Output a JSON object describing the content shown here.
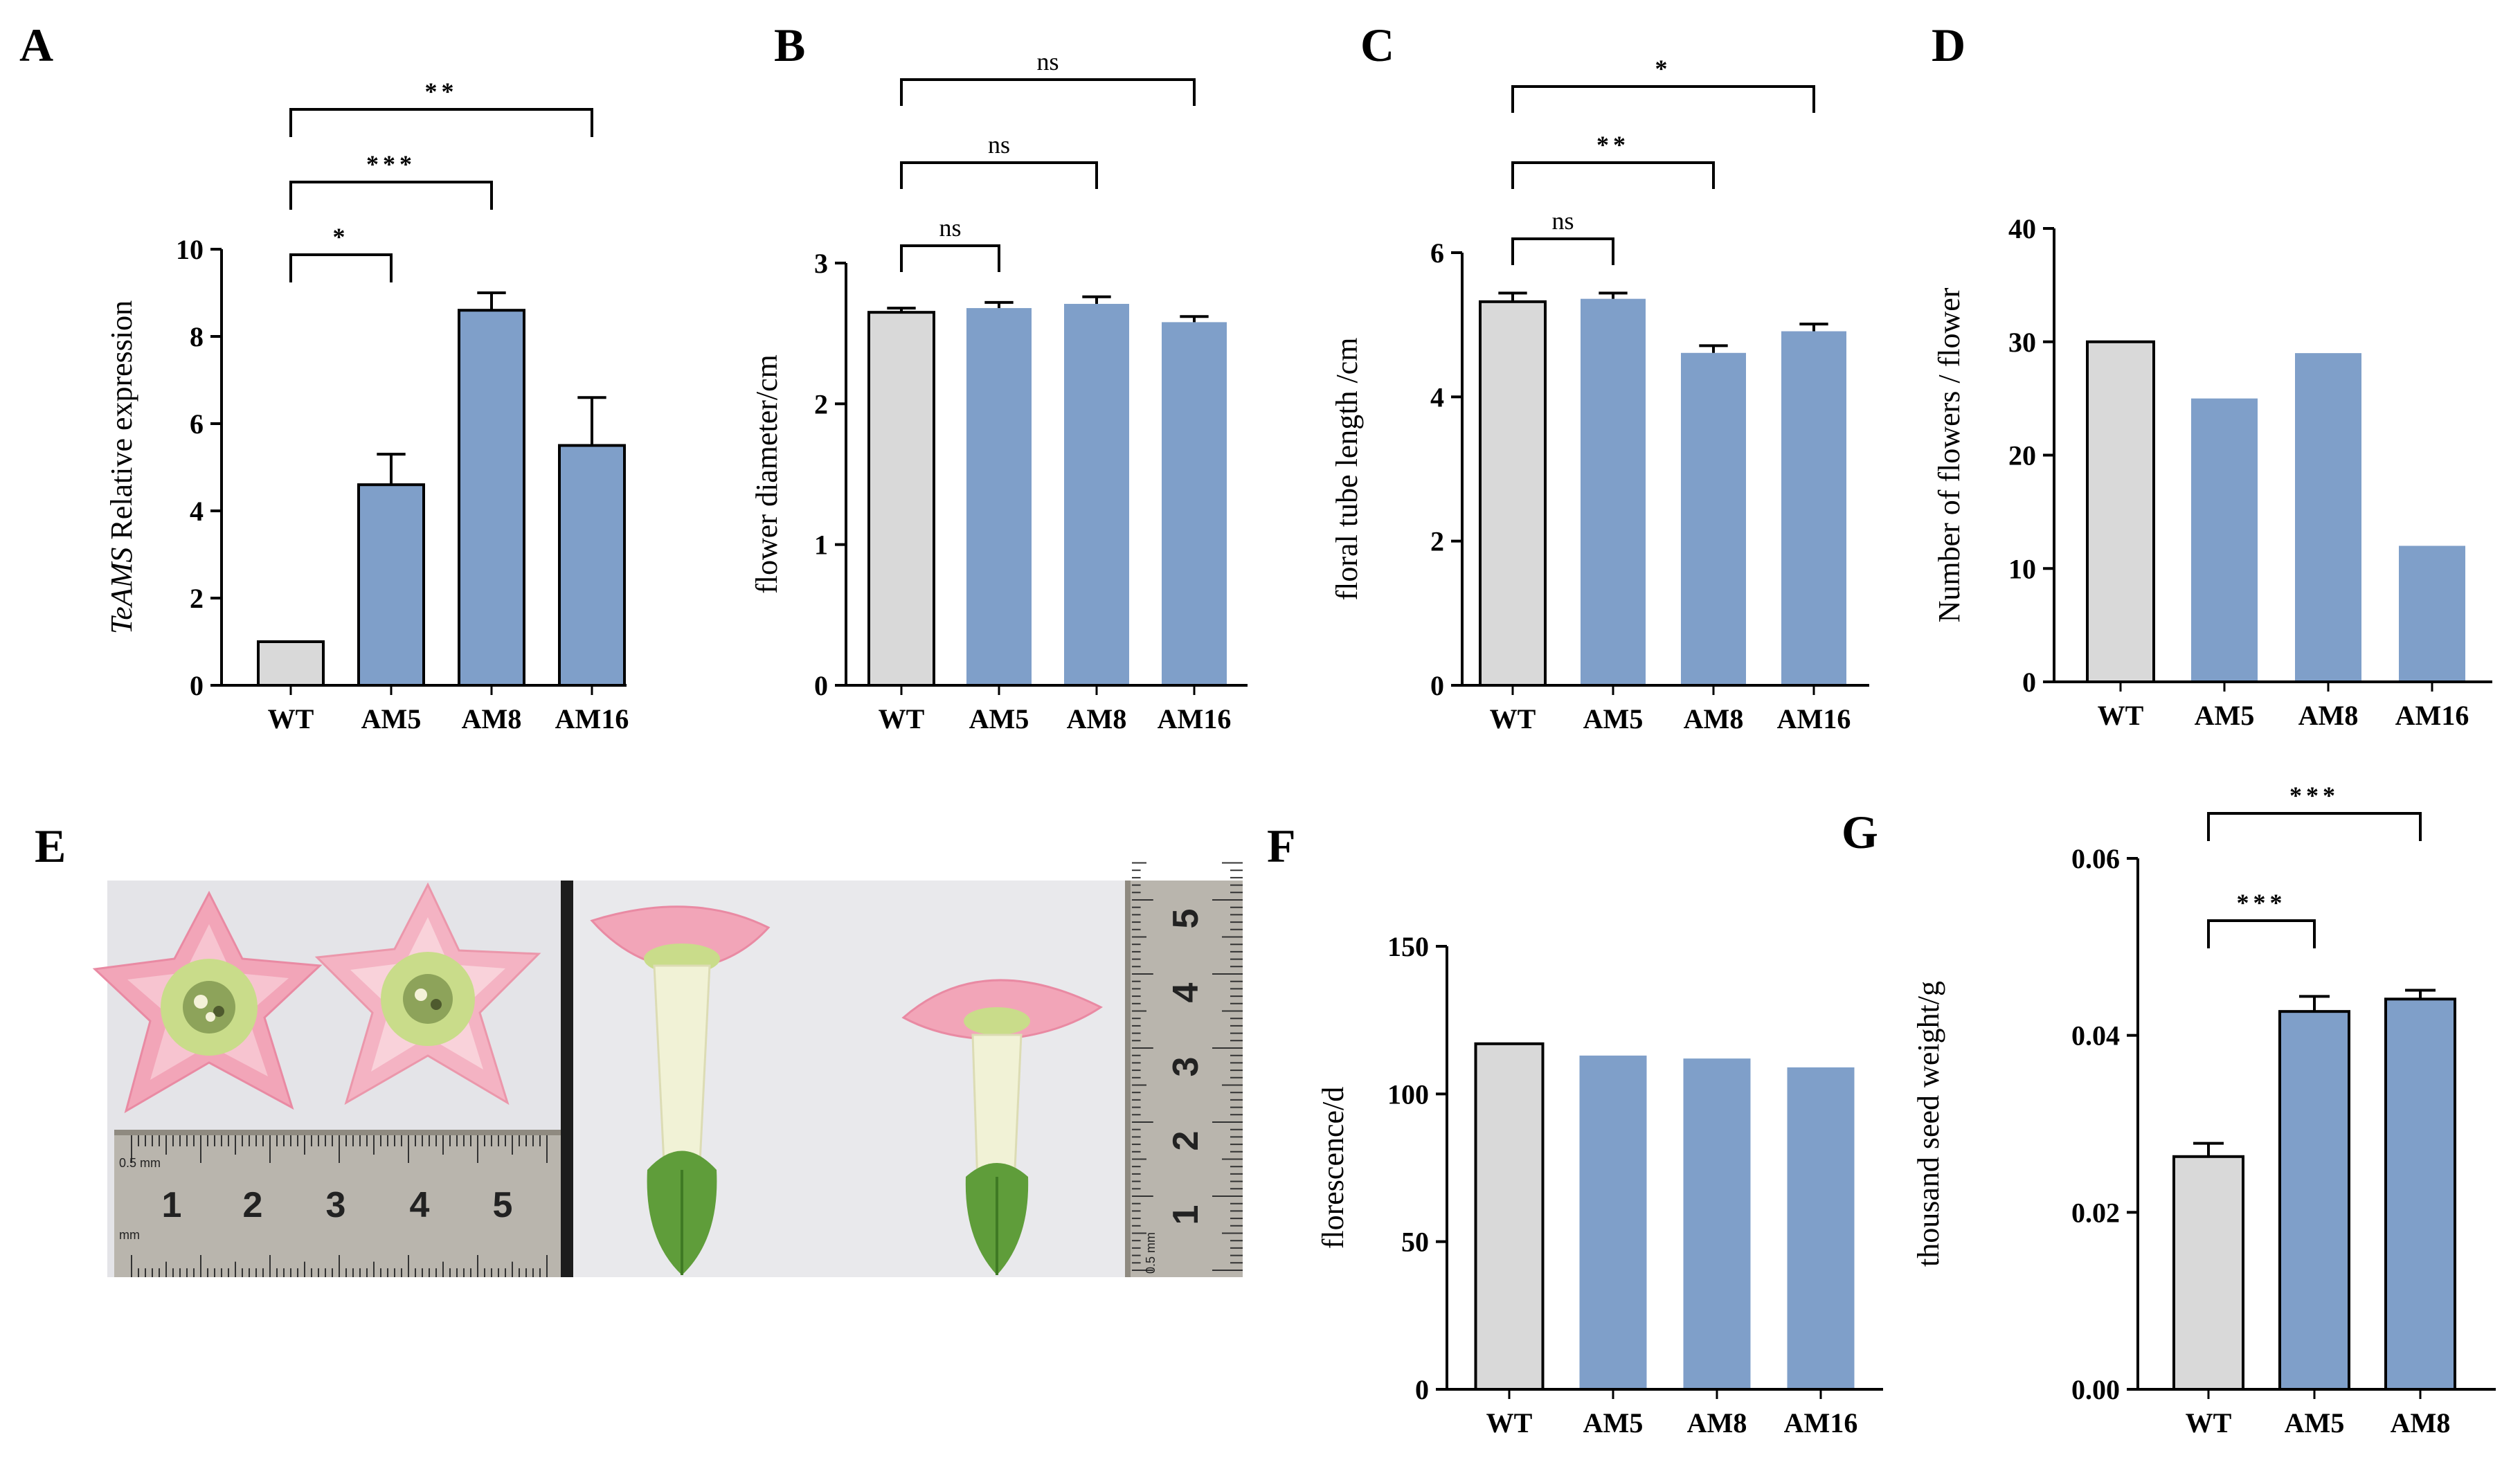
{
  "colors": {
    "wt_fill": "#d9d9d9",
    "am_fill": "#7f9fc9",
    "axis": "#000000",
    "petal_pink": "#f2a5b8",
    "petal_light": "#f7c9d4",
    "center_green": "#c9dc8a",
    "calyx_green": "#5f9d3a",
    "tube_cream": "#f1f2d6",
    "ruler_steel": "#b9b5ad",
    "divider": "#1c1c1c",
    "photo_bg": "#e9e9ec"
  },
  "panels": {
    "A": "A",
    "B": "B",
    "C": "C",
    "D": "D",
    "E": "E",
    "F": "F",
    "G": "G"
  },
  "photo": {
    "ruler_bottom_ticks": [
      "1",
      "2",
      "3",
      "4",
      "5"
    ],
    "ruler_side_ticks": [
      "1",
      "2",
      "3",
      "4",
      "5"
    ],
    "ruler_bottom_label": "0.5 mm",
    "ruler_side_label": "0.5 mm",
    "ruler_unit": "mm"
  },
  "chart_data": [
    {
      "id": "A",
      "type": "bar",
      "categories": [
        "WT",
        "AM5",
        "AM8",
        "AM16"
      ],
      "values": [
        1.0,
        4.6,
        8.6,
        5.5
      ],
      "errors": [
        0,
        0.7,
        0.4,
        1.1
      ],
      "ylabel_italic": "TeAMS",
      "ylabel": " Relative expression",
      "ylim": [
        0,
        10
      ],
      "yticks": [
        "0",
        "2",
        "4",
        "6",
        "8",
        "10"
      ],
      "yticks_values": [
        0,
        2,
        4,
        6,
        8,
        10
      ],
      "significance": [
        {
          "from": 0,
          "to": 1,
          "label": "*"
        },
        {
          "from": 0,
          "to": 2,
          "label": "***"
        },
        {
          "from": 0,
          "to": 3,
          "label": "**"
        }
      ]
    },
    {
      "id": "B",
      "type": "bar",
      "categories": [
        "WT",
        "AM5",
        "AM8",
        "AM16"
      ],
      "values": [
        2.65,
        2.68,
        2.71,
        2.58
      ],
      "errors": [
        0.03,
        0.04,
        0.05,
        0.04
      ],
      "ylabel": "flower diameter/cm",
      "ylim": [
        0,
        3
      ],
      "yticks": [
        "0",
        "1",
        "2",
        "3"
      ],
      "yticks_values": [
        0,
        1,
        2,
        3
      ],
      "significance": [
        {
          "from": 0,
          "to": 1,
          "label": "ns"
        },
        {
          "from": 0,
          "to": 2,
          "label": "ns"
        },
        {
          "from": 0,
          "to": 3,
          "label": "ns"
        }
      ]
    },
    {
      "id": "C",
      "type": "bar",
      "categories": [
        "WT",
        "AM5",
        "AM8",
        "AM16"
      ],
      "values": [
        5.32,
        5.36,
        4.61,
        4.91
      ],
      "errors": [
        0.12,
        0.08,
        0.1,
        0.1
      ],
      "ylabel": "floral tube length /cm",
      "ylim": [
        0,
        6
      ],
      "yticks": [
        "0",
        "2",
        "4",
        "6"
      ],
      "yticks_values": [
        0,
        2,
        4,
        6
      ],
      "significance": [
        {
          "from": 0,
          "to": 1,
          "label": "ns"
        },
        {
          "from": 0,
          "to": 2,
          "label": "**"
        },
        {
          "from": 0,
          "to": 3,
          "label": "*"
        }
      ]
    },
    {
      "id": "D",
      "type": "bar",
      "categories": [
        "WT",
        "AM5",
        "AM8",
        "AM16"
      ],
      "values": [
        30,
        25,
        29,
        12
      ],
      "errors": [
        0,
        0,
        0,
        0
      ],
      "ylabel": "Number of flowers / flower",
      "ylim": [
        0,
        40
      ],
      "yticks": [
        "0",
        "10",
        "20",
        "30",
        "40"
      ],
      "yticks_values": [
        0,
        10,
        20,
        30,
        40
      ],
      "significance": []
    },
    {
      "id": "F",
      "type": "bar",
      "categories": [
        "WT",
        "AM5",
        "AM8",
        "AM16"
      ],
      "values": [
        117,
        113,
        112,
        109
      ],
      "errors": [
        0,
        0,
        0,
        0
      ],
      "ylabel": "florescence/d",
      "ylim": [
        0,
        150
      ],
      "yticks": [
        "0",
        "50",
        "100",
        "150"
      ],
      "yticks_values": [
        0,
        50,
        100,
        150
      ],
      "significance": []
    },
    {
      "id": "G",
      "type": "bar",
      "categories": [
        "WT",
        "AM5",
        "AM8"
      ],
      "values": [
        0.0263,
        0.0427,
        0.0441
      ],
      "errors": [
        0.0015,
        0.0017,
        0.001
      ],
      "ylabel": "thousand seed weight/g",
      "ylim": [
        0,
        0.06
      ],
      "yticks": [
        "0.00",
        "0.02",
        "0.04",
        "0.06"
      ],
      "yticks_values": [
        0,
        0.02,
        0.04,
        0.06
      ],
      "significance": [
        {
          "from": 0,
          "to": 1,
          "label": "***"
        },
        {
          "from": 0,
          "to": 2,
          "label": "***"
        }
      ]
    }
  ]
}
